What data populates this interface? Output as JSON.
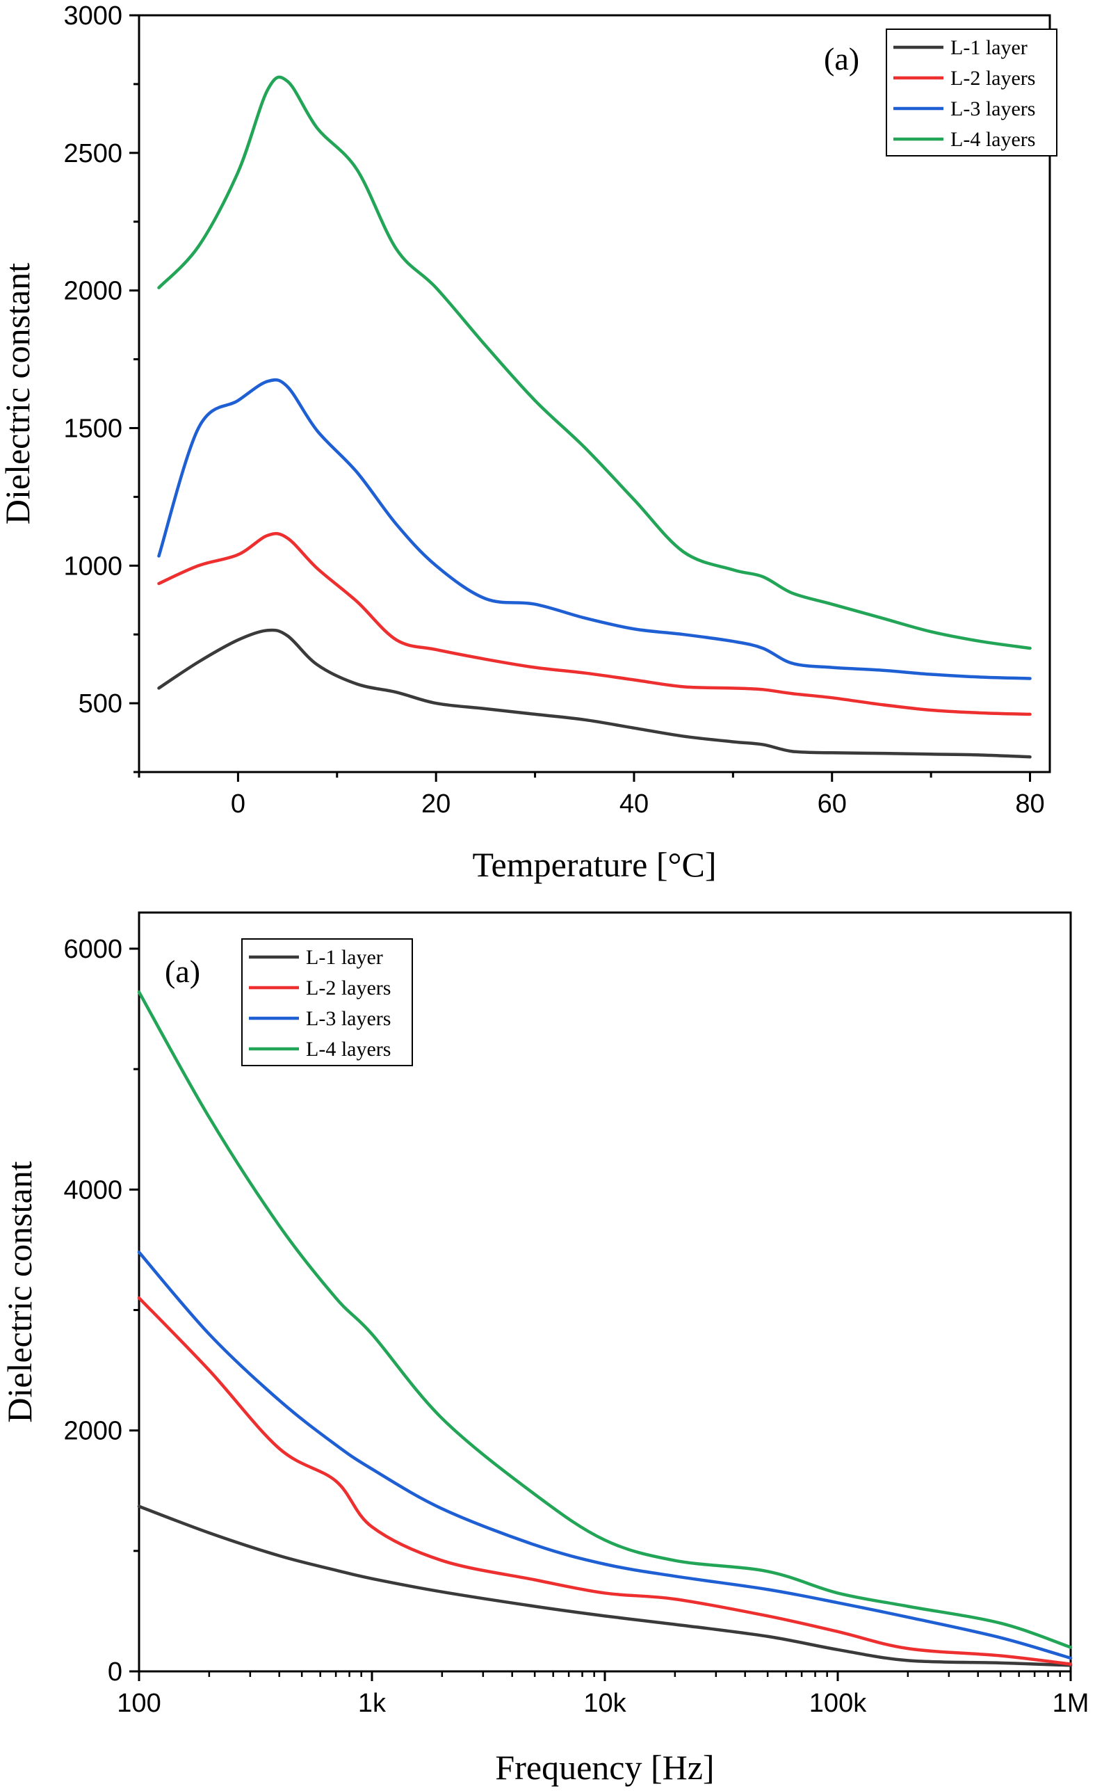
{
  "chart_data": [
    {
      "type": "line",
      "panel_label": "(a)",
      "xlabel": "Temperature [°C]",
      "ylabel": "Dielectric constant",
      "xlim": [
        -10,
        82
      ],
      "ylim": [
        250,
        3000
      ],
      "x_scale": "linear",
      "x_ticks": [
        0,
        20,
        40,
        60,
        80
      ],
      "x_tick_labels": [
        "0",
        "20",
        "40",
        "60",
        "80"
      ],
      "y_ticks": [
        500,
        1000,
        1500,
        2000,
        2500,
        3000
      ],
      "y_tick_labels": [
        "500",
        "1000",
        "1500",
        "2000",
        "2500",
        "3000"
      ],
      "legend_position": "top-right",
      "grid": false,
      "x": [
        -8,
        -4,
        0,
        3,
        5,
        8,
        12,
        16,
        20,
        25,
        30,
        35,
        40,
        45,
        50,
        53,
        56,
        60,
        65,
        70,
        75,
        80
      ],
      "series": [
        {
          "name": "L-1 layer",
          "color": "#3a3a3a",
          "values": [
            555,
            650,
            730,
            765,
            745,
            640,
            570,
            540,
            500,
            480,
            460,
            440,
            410,
            380,
            360,
            350,
            325,
            320,
            318,
            315,
            312,
            305
          ]
        },
        {
          "name": "L-2 layers",
          "color": "#ee2f2f",
          "values": [
            935,
            1000,
            1040,
            1110,
            1100,
            990,
            870,
            730,
            695,
            660,
            630,
            610,
            585,
            560,
            555,
            550,
            535,
            520,
            495,
            475,
            465,
            460
          ]
        },
        {
          "name": "L-3 layers",
          "color": "#1f5fd4",
          "values": [
            1035,
            1500,
            1600,
            1670,
            1650,
            1490,
            1340,
            1150,
            1000,
            880,
            860,
            810,
            770,
            750,
            725,
            700,
            645,
            630,
            620,
            605,
            595,
            590
          ]
        },
        {
          "name": "L-4 layers",
          "color": "#22a556",
          "values": [
            2010,
            2160,
            2430,
            2730,
            2760,
            2590,
            2440,
            2150,
            2010,
            1800,
            1600,
            1430,
            1240,
            1050,
            985,
            960,
            900,
            860,
            810,
            760,
            725,
            700
          ]
        }
      ]
    },
    {
      "type": "line",
      "panel_label": "(a)",
      "xlabel": "Frequency [Hz]",
      "ylabel": "Dielectric constant",
      "xlim": [
        100,
        1000000
      ],
      "ylim": [
        0,
        6300
      ],
      "x_scale": "log",
      "x_ticks": [
        100,
        1000,
        10000,
        100000,
        1000000
      ],
      "x_tick_labels": [
        "100",
        "1k",
        "10k",
        "100k",
        "1M"
      ],
      "y_ticks": [
        0,
        2000,
        4000,
        6000
      ],
      "y_tick_labels": [
        "0",
        "2000",
        "4000",
        "6000"
      ],
      "legend_position": "top-left",
      "grid": false,
      "x": [
        100,
        200,
        400,
        700,
        1000,
        2000,
        5000,
        10000,
        20000,
        50000,
        100000,
        200000,
        500000,
        1000000
      ],
      "series": [
        {
          "name": "L-1 layer",
          "color": "#3a3a3a",
          "values": [
            1370,
            1150,
            960,
            840,
            770,
            660,
            540,
            460,
            390,
            290,
            180,
            90,
            70,
            50
          ]
        },
        {
          "name": "L-2 layers",
          "color": "#ee2f2f",
          "values": [
            3100,
            2500,
            1850,
            1580,
            1200,
            920,
            760,
            650,
            600,
            460,
            330,
            190,
            130,
            60
          ]
        },
        {
          "name": "L-3 layers",
          "color": "#1f5fd4",
          "values": [
            3480,
            2800,
            2250,
            1880,
            1680,
            1350,
            1050,
            890,
            790,
            680,
            570,
            450,
            280,
            110
          ]
        },
        {
          "name": "L-4 layers",
          "color": "#22a556",
          "values": [
            5640,
            4600,
            3700,
            3100,
            2800,
            2100,
            1470,
            1090,
            920,
            830,
            650,
            540,
            400,
            200
          ]
        }
      ]
    }
  ]
}
